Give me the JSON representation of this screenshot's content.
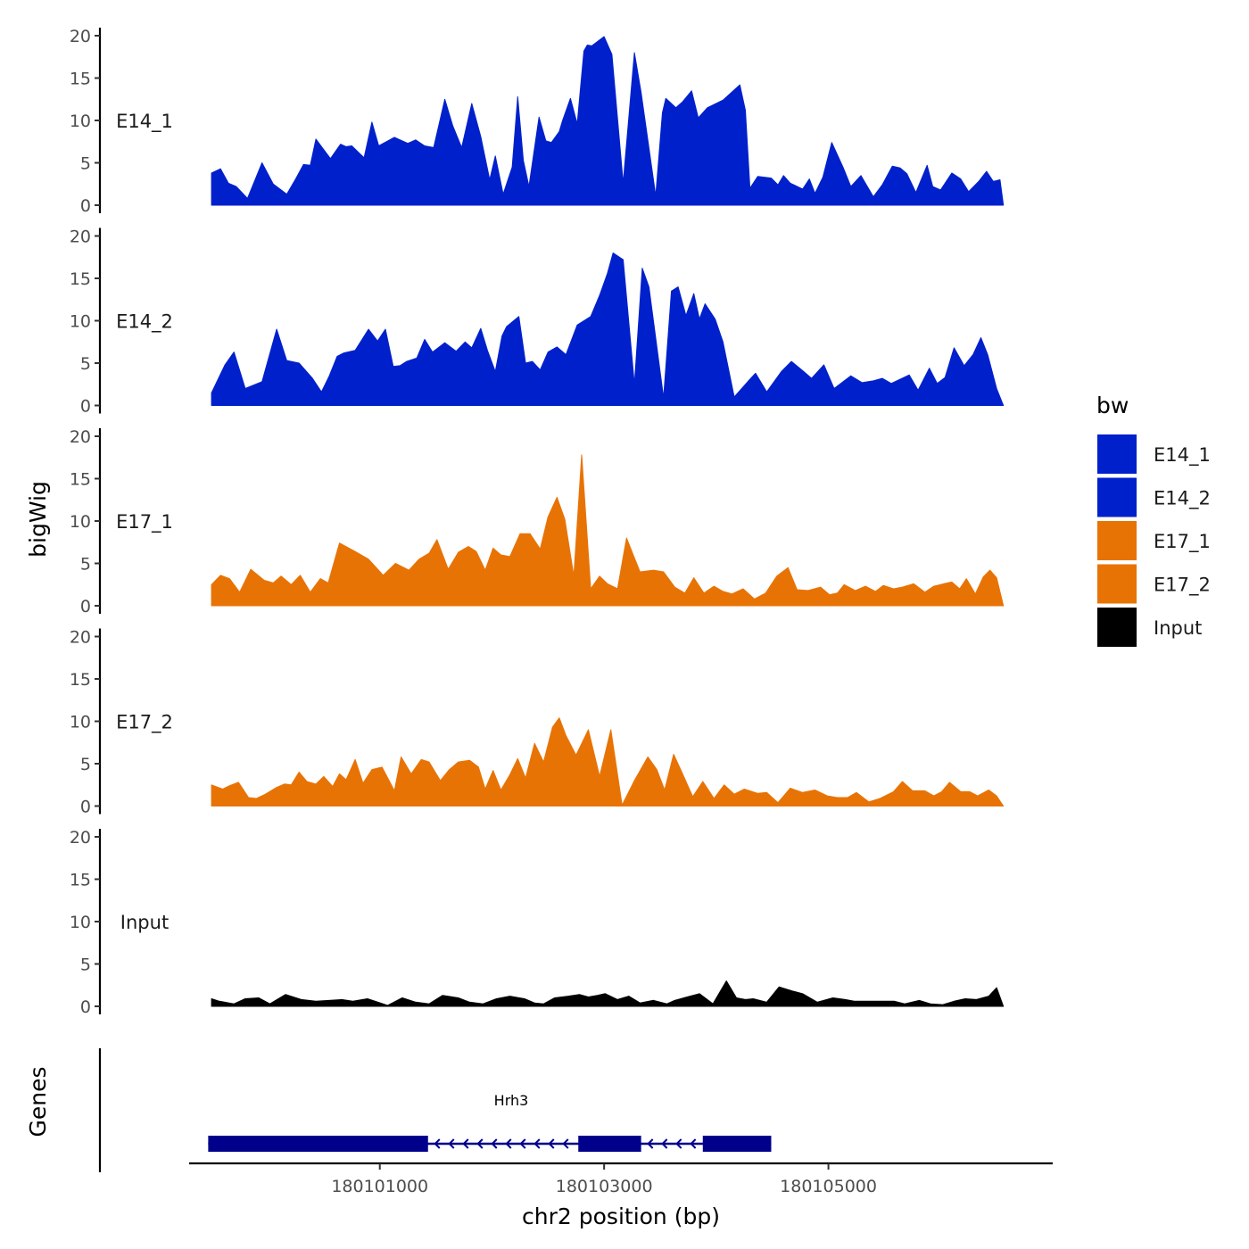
{
  "chart_data": {
    "type": "area",
    "ylabel": "bigWig",
    "xlabel": "chr2 position (bp)",
    "xlim": [
      180099300,
      180107000
    ],
    "ylim": [
      0,
      20
    ],
    "y_ticks": [
      "0",
      "5",
      "10",
      "15",
      "20"
    ],
    "x_ticks": [
      {
        "value": 180101000,
        "label": "180101000"
      },
      {
        "value": 180103000,
        "label": "180103000"
      },
      {
        "value": 180105000,
        "label": "180105000"
      }
    ],
    "legend": {
      "title": "bw",
      "position": "right",
      "entries": [
        {
          "label": "E14_1",
          "color": "#0020CC"
        },
        {
          "label": "E14_2",
          "color": "#0020CC"
        },
        {
          "label": "E17_1",
          "color": "#E87305"
        },
        {
          "label": "E17_2",
          "color": "#E87305"
        },
        {
          "label": "Input",
          "color": "#000000"
        }
      ]
    },
    "tracks": [
      {
        "name": "E14_1",
        "color": "#0020CC",
        "x": [
          180099500,
          180099580,
          180099650,
          180099720,
          180099820,
          180099950,
          180100050,
          180100170,
          180100250,
          180100320,
          180100380,
          180100430,
          180100560,
          180100650,
          180100700,
          180100750,
          180100860,
          180100930,
          180100990,
          180101130,
          180101250,
          180101320,
          180101400,
          180101480,
          180101580,
          180101650,
          180101730,
          180101820,
          180101900,
          180101980,
          180102030,
          180102100,
          180102180,
          180102230,
          180102280,
          180102330,
          180102420,
          180102480,
          180102530,
          180102600,
          180102630,
          180102700,
          180102760,
          180102820,
          180102850,
          180102890,
          180103000,
          180103070,
          180103170,
          180103270,
          180103330,
          180103460,
          180103520,
          180103550,
          180103640,
          180103700,
          180103780,
          180103840,
          180103920,
          180104060,
          180104210,
          180104260,
          180104300,
          180104370,
          180104490,
          180104550,
          180104600,
          180104660,
          180104770,
          180104830,
          180104880,
          180104950,
          180105030,
          180105130,
          180105200,
          180105290,
          180105400,
          180105480,
          180105570,
          180105640,
          180105700,
          180105780,
          180105880,
          180105930,
          180106000,
          180106100,
          180106180,
          180106250,
          180106340,
          180106410,
          180106470,
          180106530,
          180106560
        ],
        "y": [
          3.8,
          4.3,
          2.6,
          2.2,
          0.8,
          5.0,
          2.5,
          1.3,
          3.1,
          4.8,
          4.7,
          7.8,
          5.5,
          7.2,
          6.9,
          7.0,
          5.6,
          9.8,
          7.0,
          8.0,
          7.3,
          7.7,
          7.0,
          6.8,
          12.5,
          9.4,
          6.8,
          12.0,
          8.1,
          3.0,
          5.8,
          1.3,
          4.5,
          12.8,
          5.3,
          2.2,
          10.4,
          7.6,
          7.4,
          8.7,
          10.0,
          12.6,
          9.6,
          18.2,
          18.9,
          18.8,
          19.9,
          17.8,
          2.6,
          18.0,
          13.3,
          1.1,
          10.9,
          12.6,
          11.5,
          12.2,
          13.5,
          10.3,
          11.5,
          12.4,
          14.2,
          11.2,
          2.0,
          3.4,
          3.2,
          2.4,
          3.5,
          2.6,
          1.9,
          3.1,
          1.4,
          3.3,
          7.4,
          4.5,
          2.2,
          3.5,
          1.0,
          2.4,
          4.6,
          4.4,
          3.7,
          1.5,
          4.7,
          2.2,
          1.8,
          3.8,
          3.1,
          1.6,
          2.8,
          4.0,
          2.8,
          3.0,
          0.0
        ]
      },
      {
        "name": "E14_2",
        "color": "#0020CC",
        "x": [
          180099500,
          180099620,
          180099700,
          180099800,
          180099950,
          180100080,
          180100170,
          180100280,
          180100400,
          180100480,
          180100550,
          180100620,
          180100680,
          180100780,
          180100900,
          180100980,
          180101050,
          180101120,
          180101180,
          180101240,
          180101330,
          180101400,
          180101470,
          180101580,
          180101680,
          180101760,
          180101820,
          180101900,
          180101960,
          180102030,
          180102090,
          180102130,
          180102240,
          180102300,
          180102360,
          180102430,
          180102500,
          180102580,
          180102660,
          180102760,
          180102880,
          180102960,
          180103030,
          180103080,
          180103170,
          180103270,
          180103340,
          180103400,
          180103530,
          180103600,
          180103660,
          180103730,
          180103800,
          180103850,
          180103900,
          180103990,
          180104060,
          180104160,
          180104280,
          180104350,
          180104450,
          180104580,
          180104670,
          180104780,
          180104850,
          180104960,
          180105050,
          180105200,
          180105300,
          180105400,
          180105480,
          180105560,
          180105640,
          180105720,
          180105800,
          180105900,
          180105970,
          180106040,
          180106120,
          180106210,
          180106290,
          180106360,
          180106420,
          180106500,
          180106560
        ],
        "y": [
          1.5,
          4.8,
          6.3,
          2.0,
          2.8,
          9.0,
          5.3,
          5.0,
          3.2,
          1.6,
          3.5,
          5.8,
          6.2,
          6.5,
          9.0,
          7.6,
          9.0,
          4.6,
          4.7,
          5.2,
          5.6,
          7.8,
          6.3,
          7.4,
          6.4,
          7.5,
          6.8,
          9.1,
          6.5,
          4.0,
          8.2,
          9.3,
          10.5,
          5.0,
          5.2,
          4.2,
          6.3,
          6.9,
          6.0,
          9.5,
          10.5,
          13.0,
          15.6,
          18.0,
          17.2,
          2.5,
          16.2,
          14.0,
          0.9,
          13.5,
          14.0,
          10.6,
          13.2,
          10.2,
          12.0,
          10.2,
          7.5,
          1.0,
          2.8,
          3.8,
          1.6,
          4.0,
          5.2,
          4.0,
          3.2,
          4.8,
          2.0,
          3.5,
          2.7,
          2.9,
          3.2,
          2.6,
          3.1,
          3.6,
          1.8,
          4.4,
          2.6,
          3.3,
          6.8,
          4.7,
          6.0,
          8.0,
          6.0,
          2.0,
          0.0
        ]
      },
      {
        "name": "E17_1",
        "color": "#E87305",
        "x": [
          180099500,
          180099580,
          180099660,
          180099750,
          180099850,
          180099970,
          180100050,
          180100120,
          180100210,
          180100290,
          180100380,
          180100470,
          180100540,
          180100640,
          180100780,
          180100900,
          180101030,
          180101140,
          180101260,
          180101350,
          180101440,
          180101510,
          180101610,
          180101700,
          180101790,
          180101860,
          180101940,
          180102010,
          180102080,
          180102160,
          180102250,
          180102340,
          180102430,
          180102500,
          180102580,
          180102650,
          180102730,
          180102800,
          180102880,
          180102960,
          180103030,
          180103120,
          180103200,
          180103260,
          180103320,
          180103440,
          180103530,
          180103630,
          180103720,
          180103800,
          180103890,
          180103980,
          180104060,
          180104140,
          180104240,
          180104340,
          180104440,
          180104540,
          180104640,
          180104720,
          180104820,
          180104930,
          180105010,
          180105080,
          180105140,
          180105240,
          180105330,
          180105420,
          180105490,
          180105580,
          180105660,
          180105760,
          180105860,
          180105940,
          180106030,
          180106100,
          180106170,
          180106230,
          180106310,
          180106380,
          180106440,
          180106500,
          180106560
        ],
        "y": [
          2.5,
          3.6,
          3.2,
          1.6,
          4.3,
          3.0,
          2.7,
          3.5,
          2.5,
          3.6,
          1.6,
          3.2,
          2.7,
          7.4,
          6.4,
          5.5,
          3.6,
          5.0,
          4.2,
          5.5,
          6.2,
          7.8,
          4.3,
          6.3,
          7.0,
          6.4,
          4.2,
          6.8,
          6.0,
          5.8,
          8.5,
          8.5,
          6.7,
          10.5,
          12.8,
          10.2,
          3.5,
          17.8,
          2.0,
          3.5,
          2.6,
          2.0,
          8.0,
          6.0,
          4.0,
          4.2,
          4.0,
          2.2,
          1.5,
          3.3,
          1.5,
          2.3,
          1.7,
          1.4,
          2.0,
          0.8,
          1.5,
          3.5,
          4.5,
          1.9,
          1.8,
          2.2,
          1.3,
          1.5,
          2.5,
          1.8,
          2.3,
          1.7,
          2.4,
          2.0,
          2.2,
          2.6,
          1.6,
          2.3,
          2.6,
          2.8,
          2.0,
          3.2,
          1.4,
          3.4,
          4.2,
          3.3,
          0.0
        ]
      },
      {
        "name": "E17_2",
        "color": "#E87305",
        "x": [
          180099500,
          180099600,
          180099660,
          180099740,
          180099830,
          180099900,
          180099980,
          180100080,
          180100150,
          180100210,
          180100280,
          180100350,
          180100430,
          180100500,
          180100580,
          180100640,
          180100700,
          180100780,
          180100850,
          180100930,
          180101020,
          180101130,
          180101190,
          180101280,
          180101370,
          180101440,
          180101540,
          180101620,
          180101700,
          180101800,
          180101880,
          180101940,
          180102010,
          180102080,
          180102160,
          180102230,
          180102300,
          180102380,
          180102460,
          180102540,
          180102600,
          180102660,
          180102750,
          180102860,
          180102960,
          180103060,
          180103160,
          180103270,
          180103390,
          180103470,
          180103540,
          180103620,
          180103700,
          180103790,
          180103880,
          180103980,
          180104070,
          180104160,
          180104250,
          180104370,
          180104450,
          180104550,
          180104660,
          180104770,
          180104880,
          180104990,
          180105080,
          180105170,
          180105250,
          180105360,
          180105460,
          180105580,
          180105660,
          180105750,
          180105860,
          180105940,
          180106010,
          180106080,
          180106180,
          180106260,
          180106330,
          180106430,
          180106500,
          180106560
        ],
        "y": [
          2.5,
          2.0,
          2.4,
          2.8,
          1.0,
          0.9,
          1.4,
          2.2,
          2.6,
          2.5,
          4.0,
          2.9,
          2.6,
          3.5,
          2.3,
          3.8,
          3.1,
          5.5,
          2.7,
          4.3,
          4.6,
          1.8,
          5.8,
          3.8,
          5.5,
          5.2,
          3.0,
          4.3,
          5.2,
          5.4,
          4.6,
          2.0,
          4.2,
          1.9,
          3.7,
          5.6,
          3.3,
          7.4,
          5.2,
          9.3,
          10.4,
          8.3,
          6.0,
          9.0,
          3.5,
          9.0,
          0.1,
          3.0,
          5.8,
          4.3,
          1.9,
          6.1,
          3.8,
          1.1,
          2.9,
          0.9,
          2.5,
          1.4,
          2.0,
          1.5,
          1.6,
          0.4,
          2.1,
          1.6,
          1.9,
          1.2,
          1.0,
          1.0,
          1.6,
          0.5,
          0.9,
          1.7,
          2.9,
          1.8,
          1.8,
          1.2,
          1.7,
          2.8,
          1.7,
          1.7,
          1.2,
          1.9,
          1.2,
          0.0
        ]
      },
      {
        "name": "Input",
        "color": "#000000",
        "x": [
          180099500,
          180099570,
          180099700,
          180099800,
          180099920,
          180100020,
          180100160,
          180100300,
          180100430,
          180100560,
          180100660,
          180100760,
          180100890,
          180100960,
          180101070,
          180101200,
          180101320,
          180101440,
          180101560,
          180101700,
          180101800,
          180101920,
          180102040,
          180102160,
          180102290,
          180102380,
          180102460,
          180102560,
          180102680,
          180102780,
          180102860,
          180102940,
          180103010,
          180103120,
          180103220,
          180103320,
          180103440,
          180103560,
          180103630,
          180103740,
          180103850,
          180103970,
          180104090,
          180104180,
          180104260,
          180104330,
          180104450,
          180104560,
          180104680,
          180104770,
          180104900,
          180105040,
          180105150,
          180105230,
          180105340,
          180105460,
          180105590,
          180105680,
          180105810,
          180105910,
          180106020,
          180106120,
          180106220,
          180106320,
          180106430,
          180106500,
          180106560
        ],
        "y": [
          0.9,
          0.6,
          0.3,
          0.9,
          1.0,
          0.3,
          1.4,
          0.8,
          0.6,
          0.7,
          0.8,
          0.6,
          0.9,
          0.6,
          0.1,
          1.0,
          0.5,
          0.3,
          1.3,
          1.0,
          0.5,
          0.3,
          0.9,
          1.2,
          0.9,
          0.4,
          0.3,
          1.0,
          1.2,
          1.4,
          1.1,
          1.3,
          1.5,
          0.8,
          1.2,
          0.4,
          0.7,
          0.3,
          0.7,
          1.1,
          1.5,
          0.3,
          3.0,
          1.0,
          0.8,
          0.9,
          0.5,
          2.3,
          1.8,
          1.5,
          0.5,
          1.0,
          0.8,
          0.6,
          0.6,
          0.6,
          0.6,
          0.3,
          0.7,
          0.3,
          0.2,
          0.6,
          0.9,
          0.8,
          1.2,
          2.2,
          0.0
        ]
      }
    ],
    "gene_track": {
      "label": "Genes",
      "genes": [
        {
          "name": "Hrh3",
          "strand": "-",
          "start": 180099470,
          "end": 180104490,
          "color": "#00008B",
          "exons": [
            {
              "start": 180099470,
              "end": 180101430
            },
            {
              "start": 180102770,
              "end": 180103330
            },
            {
              "start": 180103880,
              "end": 180104490
            }
          ]
        }
      ]
    }
  }
}
